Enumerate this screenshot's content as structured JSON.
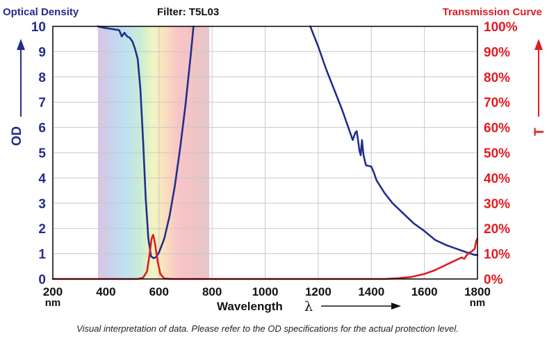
{
  "header": {
    "left_title": "Optical Density",
    "center_title": "Filter: T5L03",
    "right_title": "Transmission Curve"
  },
  "axes": {
    "left_label": "OD",
    "right_label": "T",
    "x_label": "Wavelength",
    "x_symbol": "λ",
    "x_unit": "nm"
  },
  "footnote": "Visual interpretation of data. Please refer to the OD specifications for the actual protection level.",
  "colors": {
    "od": "#232d8c",
    "transmission": "#e11b22",
    "grid": "#c8c8c8"
  },
  "chart_data": {
    "type": "line",
    "x_ticks": [
      "200",
      "400",
      "600",
      "800",
      "1000",
      "1200",
      "1400",
      "1600",
      "1800"
    ],
    "y_left_ticks": [
      "0",
      "1",
      "2",
      "3",
      "4",
      "5",
      "6",
      "7",
      "8",
      "9",
      "10"
    ],
    "y_right_ticks": [
      "0%",
      "10%",
      "20%",
      "30%",
      "40%",
      "50%",
      "60%",
      "70%",
      "80%",
      "90%",
      "100%"
    ],
    "xlim": [
      200,
      1800
    ],
    "ylim_left": [
      0,
      10
    ],
    "ylim_right": [
      0,
      100
    ],
    "grid": true,
    "visible_spectrum_band": [
      370,
      790
    ],
    "series": [
      {
        "axis": "left",
        "color": "#232d8c",
        "points": [
          [
            370,
            10
          ],
          [
            390,
            9.95
          ],
          [
            420,
            9.9
          ],
          [
            450,
            9.85
          ],
          [
            460,
            9.6
          ],
          [
            470,
            9.75
          ],
          [
            480,
            9.6
          ],
          [
            490,
            9.55
          ],
          [
            500,
            9.4
          ],
          [
            510,
            9.1
          ],
          [
            520,
            8.7
          ],
          [
            530,
            7.5
          ],
          [
            540,
            5.5
          ],
          [
            550,
            3.2
          ],
          [
            560,
            1.6
          ],
          [
            570,
            0.9
          ],
          [
            580,
            0.82
          ],
          [
            590,
            0.88
          ],
          [
            600,
            1.05
          ],
          [
            620,
            1.6
          ],
          [
            640,
            2.5
          ],
          [
            660,
            3.7
          ],
          [
            680,
            5.2
          ],
          [
            700,
            6.9
          ],
          [
            720,
            8.9
          ],
          [
            730,
            10
          ]
        ]
      },
      {
        "axis": "left",
        "color": "#232d8c",
        "points": [
          [
            1170,
            10
          ],
          [
            1200,
            9.2
          ],
          [
            1230,
            8.3
          ],
          [
            1260,
            7.5
          ],
          [
            1290,
            6.7
          ],
          [
            1310,
            6.1
          ],
          [
            1330,
            5.5
          ],
          [
            1340,
            5.8
          ],
          [
            1345,
            5.85
          ],
          [
            1350,
            5.5
          ],
          [
            1355,
            5.1
          ],
          [
            1360,
            4.9
          ],
          [
            1365,
            5.5
          ],
          [
            1370,
            4.95
          ],
          [
            1375,
            4.7
          ],
          [
            1380,
            4.5
          ],
          [
            1400,
            4.45
          ],
          [
            1410,
            4.2
          ],
          [
            1420,
            3.9
          ],
          [
            1450,
            3.4
          ],
          [
            1480,
            3.0
          ],
          [
            1500,
            2.8
          ],
          [
            1530,
            2.5
          ],
          [
            1560,
            2.2
          ],
          [
            1600,
            1.9
          ],
          [
            1640,
            1.55
          ],
          [
            1680,
            1.35
          ],
          [
            1720,
            1.2
          ],
          [
            1760,
            1.05
          ],
          [
            1790,
            0.95
          ],
          [
            1800,
            0.95
          ]
        ]
      },
      {
        "axis": "right",
        "color": "#e11b22",
        "points": [
          [
            200,
            0
          ],
          [
            520,
            0
          ],
          [
            540,
            0.5
          ],
          [
            555,
            3
          ],
          [
            565,
            10
          ],
          [
            572,
            16
          ],
          [
            578,
            17.5
          ],
          [
            585,
            14
          ],
          [
            595,
            7
          ],
          [
            605,
            2
          ],
          [
            620,
            0.2
          ],
          [
            650,
            0
          ],
          [
            1450,
            0
          ],
          [
            1500,
            0.3
          ],
          [
            1550,
            0.8
          ],
          [
            1600,
            2
          ],
          [
            1640,
            3.5
          ],
          [
            1680,
            5.5
          ],
          [
            1720,
            7.5
          ],
          [
            1740,
            8.5
          ],
          [
            1750,
            8
          ],
          [
            1760,
            9.5
          ],
          [
            1770,
            10.5
          ],
          [
            1780,
            11
          ],
          [
            1790,
            12
          ],
          [
            1795,
            15
          ],
          [
            1800,
            16
          ]
        ]
      }
    ]
  }
}
